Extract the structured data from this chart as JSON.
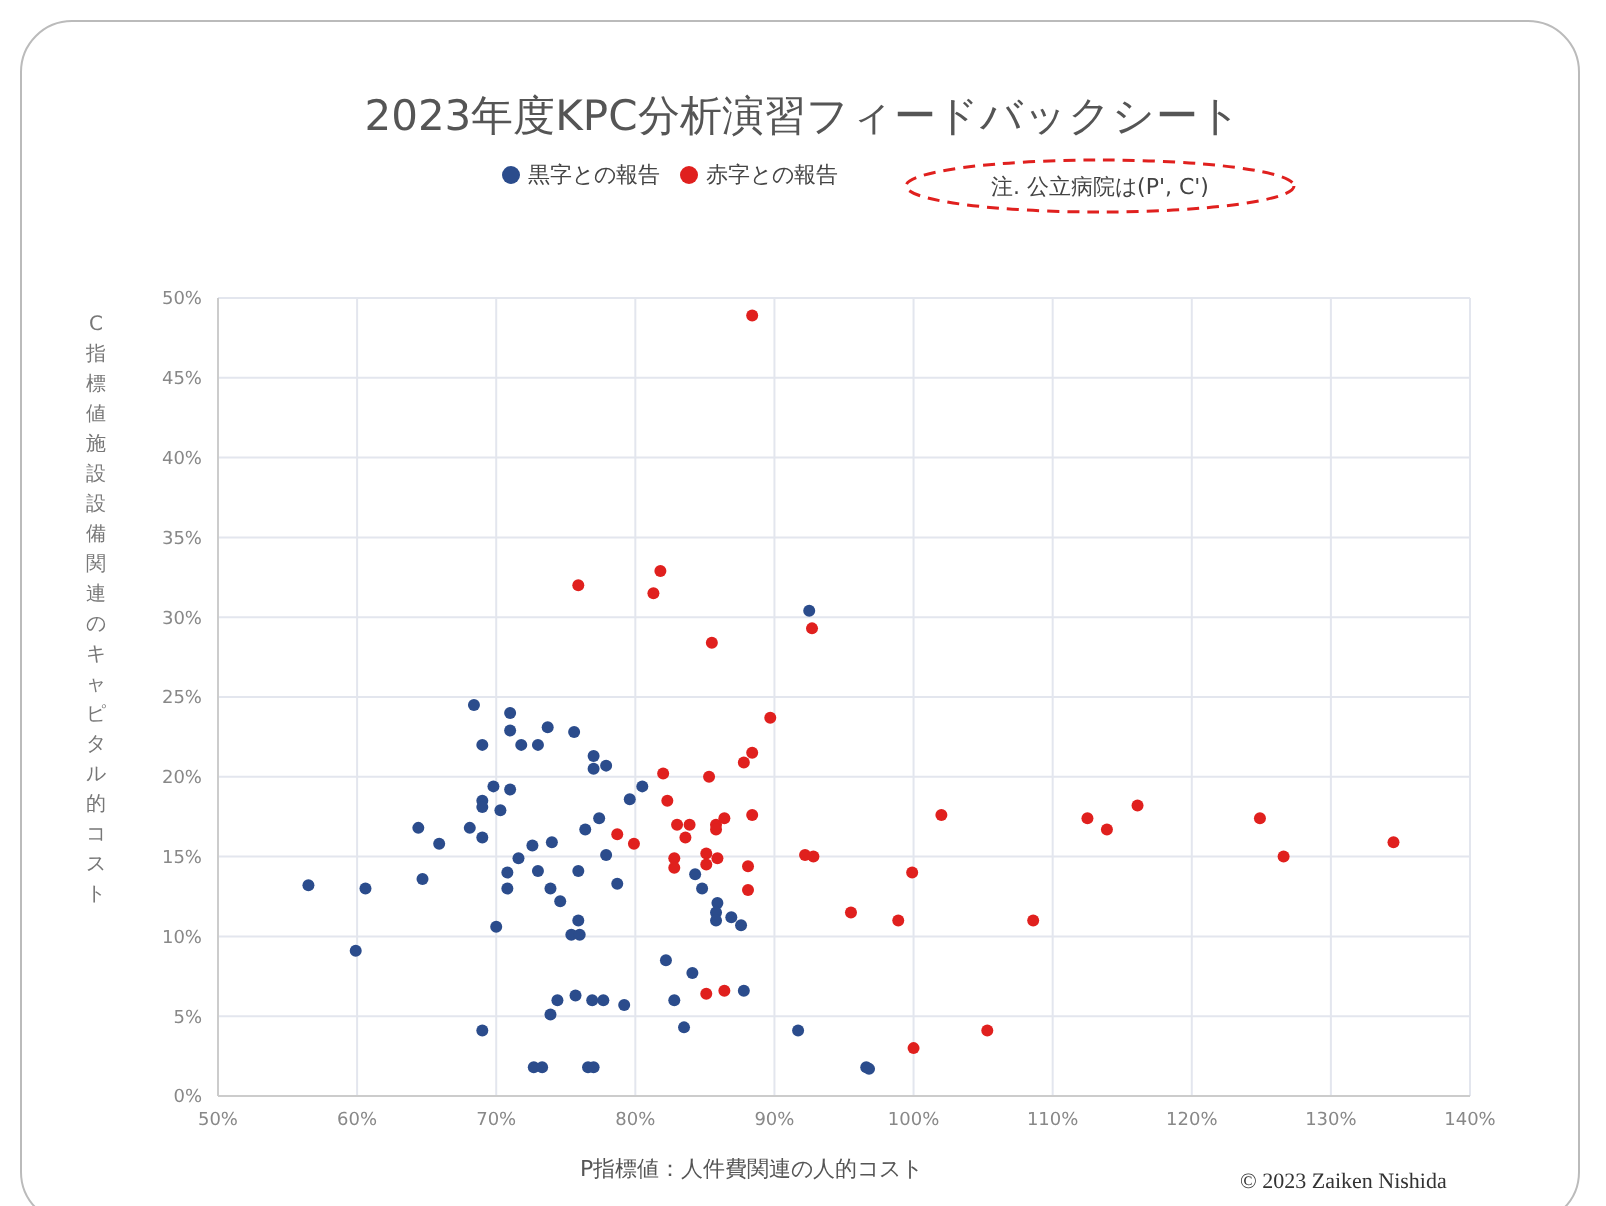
{
  "chart_data": {
    "type": "scatter",
    "title": "2023年度KPC分析演習フィードバックシート",
    "xlabel": "P指標値：人件費関連の人的コスト",
    "ylabel": "C指標値施設設備関連のキャピタル的コスト",
    "annotations": [
      "注. 公立病院は(P', C')",
      "© 2023 Zaiken Nishida"
    ],
    "xlim": [
      50,
      140
    ],
    "xticks": [
      {
        "value": 50,
        "label": "50%"
      },
      {
        "value": 60,
        "label": "60%"
      },
      {
        "value": 70,
        "label": "70%"
      },
      {
        "value": 80,
        "label": "80%"
      },
      {
        "value": 90,
        "label": "90%"
      },
      {
        "value": 100,
        "label": "100%"
      },
      {
        "value": 110,
        "label": "110%"
      },
      {
        "value": 120,
        "label": "120%"
      },
      {
        "value": 130,
        "label": "130%"
      },
      {
        "value": 140,
        "label": "140%"
      }
    ],
    "ylim": [
      0,
      50
    ],
    "yticks": [
      {
        "value": 0,
        "label": "0%"
      },
      {
        "value": 5,
        "label": "5%"
      },
      {
        "value": 10,
        "label": "10%"
      },
      {
        "value": 15,
        "label": "15%"
      },
      {
        "value": 20,
        "label": "20%"
      },
      {
        "value": 25,
        "label": "25%"
      },
      {
        "value": 30,
        "label": "30%"
      },
      {
        "value": 35,
        "label": "35%"
      },
      {
        "value": 40,
        "label": "40%"
      },
      {
        "value": 45,
        "label": "45%"
      },
      {
        "value": 50,
        "label": "50%"
      }
    ],
    "grid": true,
    "legend": "top",
    "marker": "circle",
    "series": [
      {
        "name": "黒字との報告",
        "color": "#2b4c8c",
        "x": [
          56.5,
          60.6,
          59.9,
          64.7,
          64.4,
          65.9,
          68.1,
          69.0,
          68.4,
          69.0,
          69.8,
          71.0,
          69.0,
          69.0,
          70.3,
          71.0,
          71.0,
          71.8,
          73.0,
          73.7,
          75.6,
          77.0,
          77.0,
          77.9,
          80.5,
          79.6,
          77.4,
          76.4,
          77.9,
          78.7,
          75.9,
          74.0,
          72.6,
          71.6,
          70.8,
          70.8,
          73.0,
          73.9,
          74.6,
          75.9,
          75.4,
          76.0,
          70.0,
          74.4,
          75.7,
          76.9,
          77.7,
          79.2,
          73.9,
          69.0,
          72.7,
          73.3,
          76.6,
          77.0,
          92.5,
          84.3,
          84.8,
          85.9,
          85.8,
          85.8,
          86.9,
          87.6,
          82.2,
          84.1,
          82.8,
          83.5,
          87.8,
          91.7,
          96.6,
          96.8
        ],
        "values": [
          13.2,
          13.0,
          9.1,
          13.6,
          16.8,
          15.8,
          16.8,
          16.2,
          24.5,
          22.0,
          19.4,
          19.2,
          18.5,
          18.1,
          17.9,
          24.0,
          22.9,
          22.0,
          22.0,
          23.1,
          22.8,
          21.3,
          20.5,
          20.7,
          19.4,
          18.6,
          17.4,
          16.7,
          15.1,
          13.3,
          14.1,
          15.9,
          15.7,
          14.9,
          14.0,
          13.0,
          14.1,
          13.0,
          12.2,
          11.0,
          10.1,
          10.1,
          10.6,
          6.0,
          6.3,
          6.0,
          6.0,
          5.7,
          5.1,
          4.1,
          1.8,
          1.8,
          1.8,
          1.8,
          30.4,
          13.9,
          13.0,
          12.1,
          11.5,
          11.0,
          11.2,
          10.7,
          8.5,
          7.7,
          6.0,
          4.3,
          6.6,
          4.1,
          1.8,
          1.7
        ]
      },
      {
        "name": "赤字との報告",
        "color": "#e0201e",
        "x": [
          75.9,
          81.8,
          81.3,
          88.4,
          85.5,
          92.7,
          89.7,
          88.4,
          87.8,
          82.0,
          85.3,
          88.4,
          82.3,
          83.0,
          83.9,
          83.6,
          85.8,
          86.4,
          85.8,
          78.7,
          79.9,
          82.8,
          82.8,
          85.1,
          85.1,
          85.9,
          88.1,
          88.1,
          92.2,
          92.8,
          99.9,
          95.5,
          98.9,
          102.0,
          85.1,
          86.4,
          100.0,
          108.6,
          105.3,
          112.5,
          113.9,
          116.1,
          124.9,
          126.6,
          134.5
        ],
        "values": [
          32.0,
          32.9,
          31.5,
          48.9,
          28.4,
          29.3,
          23.7,
          21.5,
          20.9,
          20.2,
          20.0,
          17.6,
          18.5,
          17.0,
          17.0,
          16.2,
          17.0,
          17.4,
          16.7,
          16.4,
          15.8,
          14.9,
          14.3,
          15.2,
          14.5,
          14.9,
          14.4,
          12.9,
          15.1,
          15.0,
          14.0,
          11.5,
          11.0,
          17.6,
          6.4,
          6.6,
          3.0,
          11.0,
          4.1,
          17.4,
          16.7,
          18.2,
          17.4,
          15.0,
          15.9
        ]
      }
    ]
  }
}
